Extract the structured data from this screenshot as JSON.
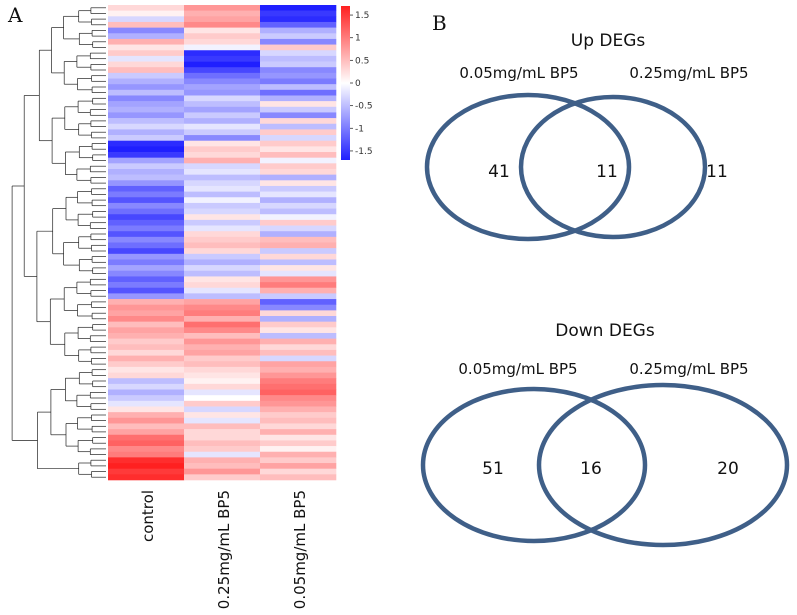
{
  "panel_a": {
    "letter": "A"
  },
  "panel_b": {
    "letter": "B"
  },
  "chart_data": [
    {
      "type": "heatmap",
      "title": "",
      "columns": [
        "control",
        "0.25mg/mL BP5",
        "0.05mg/mL BP5"
      ],
      "colorbar": {
        "min": -1.7,
        "max": 1.7,
        "ticks": [
          "1.5",
          "1",
          "0.5",
          "0",
          "-0.5",
          "-1",
          "-1.5"
        ],
        "tick_values": [
          1.5,
          1,
          0.5,
          0,
          -0.5,
          -1,
          -1.5
        ],
        "low_color": "#1f1fff",
        "mid_color": "#ffffff",
        "high_color": "#ff2020"
      },
      "rows": [
        [
          0.3,
          0.8,
          -1.7
        ],
        [
          0.1,
          0.6,
          -1.5
        ],
        [
          -0.3,
          0.7,
          -1.6
        ],
        [
          0.5,
          0.9,
          -1.2
        ],
        [
          -0.9,
          0.2,
          -0.6
        ],
        [
          -0.6,
          0.4,
          -0.4
        ],
        [
          0.6,
          0.3,
          -0.9
        ],
        [
          0.2,
          -0.1,
          0.4
        ],
        [
          0.4,
          -1.6,
          -0.3
        ],
        [
          -0.2,
          -1.5,
          -0.5
        ],
        [
          0.3,
          -1.7,
          -0.4
        ],
        [
          0.5,
          -1.4,
          -0.9
        ],
        [
          -0.4,
          -1.1,
          -0.8
        ],
        [
          -0.6,
          -0.9,
          -1.0
        ],
        [
          -0.8,
          -0.7,
          -0.5
        ],
        [
          -0.5,
          -0.8,
          -1.1
        ],
        [
          -0.9,
          -0.3,
          -0.6
        ],
        [
          -0.7,
          -0.5,
          0.2
        ],
        [
          -0.6,
          -0.7,
          -0.4
        ],
        [
          -0.8,
          -0.4,
          -0.9
        ],
        [
          -0.5,
          -0.6,
          0.3
        ],
        [
          -0.3,
          -0.2,
          -0.5
        ],
        [
          -0.6,
          -0.4,
          0.4
        ],
        [
          -0.4,
          -0.9,
          -0.3
        ],
        [
          -1.6,
          0.2,
          0.4
        ],
        [
          -1.7,
          0.4,
          0.2
        ],
        [
          -1.5,
          0.3,
          0.5
        ],
        [
          -0.7,
          0.6,
          -0.1
        ],
        [
          -0.4,
          -0.3,
          0.4
        ],
        [
          -0.6,
          -0.2,
          0.3
        ],
        [
          -0.5,
          -0.5,
          -0.6
        ],
        [
          -0.8,
          -0.3,
          0.2
        ],
        [
          -1.2,
          -0.2,
          -0.4
        ],
        [
          -1.0,
          -0.5,
          -0.2
        ],
        [
          -1.3,
          -0.1,
          -0.6
        ],
        [
          -0.9,
          -0.4,
          -0.3
        ],
        [
          -1.1,
          -0.3,
          -0.5
        ],
        [
          -1.4,
          0.2,
          -0.1
        ],
        [
          -1.2,
          -0.4,
          0.4
        ],
        [
          -1.0,
          -0.2,
          -0.3
        ],
        [
          -1.3,
          0.3,
          -0.6
        ],
        [
          -0.9,
          0.4,
          0.5
        ],
        [
          -1.1,
          0.5,
          0.6
        ],
        [
          -1.4,
          0.3,
          -0.4
        ],
        [
          -0.8,
          -0.4,
          0.3
        ],
        [
          -1.0,
          -0.6,
          -0.5
        ],
        [
          -0.7,
          -0.3,
          0.2
        ],
        [
          -0.9,
          -0.5,
          -0.2
        ],
        [
          -1.2,
          0.2,
          0.8
        ],
        [
          -1.0,
          0.3,
          1.0
        ],
        [
          -1.3,
          -0.2,
          0.6
        ],
        [
          -0.8,
          -0.5,
          -0.4
        ],
        [
          0.6,
          0.7,
          -1.2
        ],
        [
          0.8,
          0.9,
          -0.9
        ],
        [
          0.7,
          1.0,
          0.3
        ],
        [
          0.9,
          0.6,
          -0.6
        ],
        [
          0.5,
          1.1,
          0.4
        ],
        [
          0.7,
          0.9,
          0.2
        ],
        [
          0.6,
          0.5,
          -0.5
        ],
        [
          0.4,
          0.8,
          0.6
        ],
        [
          0.5,
          0.6,
          0.3
        ],
        [
          0.3,
          0.7,
          0.5
        ],
        [
          0.6,
          0.4,
          -0.3
        ],
        [
          0.4,
          0.5,
          0.7
        ],
        [
          0.2,
          0.3,
          0.6
        ],
        [
          0.3,
          0.2,
          0.8
        ],
        [
          -0.5,
          0.1,
          1.0
        ],
        [
          -0.3,
          0.3,
          1.1
        ],
        [
          -0.6,
          -0.2,
          1.2
        ],
        [
          -0.4,
          0.0,
          0.9
        ],
        [
          -0.2,
          0.4,
          0.8
        ],
        [
          0.2,
          -0.3,
          0.6
        ],
        [
          0.6,
          0.2,
          0.4
        ],
        [
          0.8,
          -0.2,
          0.5
        ],
        [
          0.5,
          0.5,
          0.3
        ],
        [
          0.7,
          0.3,
          0.6
        ],
        [
          1.1,
          0.3,
          0.2
        ],
        [
          1.2,
          0.5,
          0.4
        ],
        [
          0.9,
          0.4,
          0.1
        ],
        [
          1.0,
          -0.2,
          0.6
        ],
        [
          1.6,
          0.6,
          0.4
        ],
        [
          1.7,
          0.5,
          0.7
        ],
        [
          1.5,
          0.8,
          0.3
        ],
        [
          1.6,
          0.4,
          0.5
        ]
      ]
    },
    {
      "type": "venn",
      "title": "Up DEGs",
      "sets": [
        "0.05mg/mL BP5",
        "0.25mg/mL BP5"
      ],
      "only_first": "41",
      "overlap": "11",
      "only_second": "11",
      "stroke_color": "#3f5f88"
    },
    {
      "type": "venn",
      "title": "Down DEGs",
      "sets": [
        "0.05mg/mL BP5",
        "0.25mg/mL BP5"
      ],
      "only_first": "51",
      "overlap": "16",
      "only_second": "20",
      "stroke_color": "#3f5f88"
    }
  ]
}
